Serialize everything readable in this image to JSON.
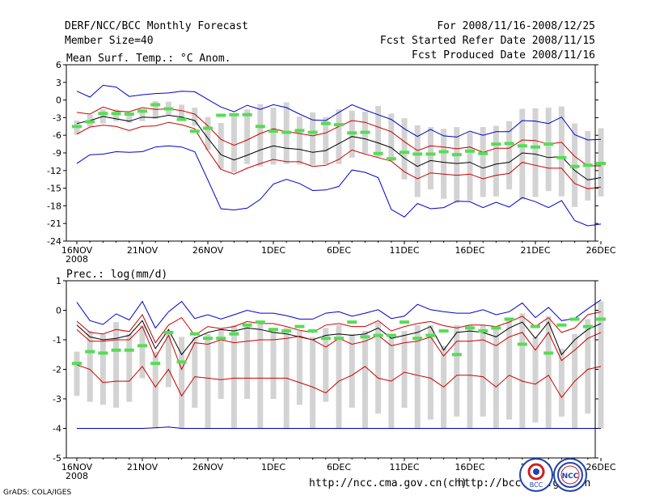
{
  "header": {
    "title": "DERF/NCC/BCC Monthly Forecast",
    "member_size": "Member Size=40",
    "period": "For 2008/11/16-2008/12/25",
    "started": "Fcst Started Refer Date 2008/11/15",
    "produced": "Fcst Produced Date 2008/11/16"
  },
  "footer": {
    "url1": "http://ncc.cma.gov.cn(ch)",
    "url2": "http://bcc.cma.gov.cn",
    "grads": "GrADS: COLA/IGES",
    "logo1_label": "BCC",
    "logo2_label": "NCC"
  },
  "colors": {
    "grey_bar": "#d3d3d3",
    "green": "#55dd55",
    "red": "#cc0000",
    "blue": "#0000cc",
    "black": "#000000"
  },
  "chart_data": [
    {
      "type": "line",
      "title": "Mean Surf. Temp.: °C Anom.",
      "xlabel": "",
      "ylabel": "",
      "x_tick_labels": [
        "16NOV",
        "21NOV",
        "26NOV",
        "1DEC",
        "6DEC",
        "11DEC",
        "16DEC",
        "21DEC",
        "26DEC"
      ],
      "x_tick_days": [
        0,
        5,
        10,
        15,
        20,
        25,
        30,
        35,
        40
      ],
      "year_label": "2008",
      "ylim": [
        -24,
        6
      ],
      "y_ticks": [
        6,
        3,
        0,
        -3,
        -6,
        -9,
        -12,
        -15,
        -18,
        -21,
        -24
      ],
      "y_tick_labels": [
        "6",
        "3",
        "0",
        "-3",
        "-6",
        "-9",
        "-12",
        "-15",
        "-18",
        "-21",
        "-24"
      ],
      "series": [
        {
          "name": "member max",
          "color": "blue",
          "values": [
            1.5,
            0.5,
            2.5,
            2.2,
            0.6,
            0.9,
            1.1,
            1.2,
            1.5,
            1.4,
            0.1,
            -1.2,
            -2.0,
            -0.9,
            -1.6,
            -0.8,
            -1.3,
            -2.4,
            -3.4,
            -3.5,
            -2.1,
            -0.8,
            -1.7,
            -2.5,
            -3.3,
            -4.9,
            -6.2,
            -5.0,
            -6.1,
            -6.3,
            -5.3,
            -6.0,
            -5.4,
            -5.4,
            -3.5,
            -3.6,
            -4.0,
            -2.9,
            -5.9,
            -6.8,
            -6.7
          ]
        },
        {
          "name": "upper",
          "color": "red",
          "values": [
            -2.1,
            -2.4,
            -1.2,
            -1.9,
            -2.0,
            -1.3,
            -1.6,
            -1.5,
            -1.8,
            -2.4,
            -4.4,
            -6.7,
            -7.7,
            -6.8,
            -5.7,
            -4.9,
            -5.4,
            -5.7,
            -6.1,
            -5.6,
            -4.5,
            -3.5,
            -3.8,
            -4.6,
            -5.4,
            -7.1,
            -8.6,
            -7.8,
            -8.0,
            -8.3,
            -8.0,
            -8.9,
            -8.2,
            -8.2,
            -6.8,
            -6.9,
            -7.5,
            -7.2,
            -9.6,
            -11.2,
            -11.2
          ]
        },
        {
          "name": "mean",
          "color": "black",
          "values": [
            -4.0,
            -3.5,
            -2.8,
            -3.2,
            -3.6,
            -2.9,
            -3.0,
            -2.6,
            -2.9,
            -3.5,
            -6.5,
            -9.3,
            -10.2,
            -9.4,
            -8.5,
            -7.8,
            -8.2,
            -8.4,
            -8.9,
            -8.6,
            -7.4,
            -6.2,
            -6.6,
            -7.3,
            -8.1,
            -9.9,
            -11.3,
            -10.3,
            -10.6,
            -10.8,
            -10.6,
            -11.6,
            -10.9,
            -10.6,
            -9.0,
            -9.2,
            -9.8,
            -9.6,
            -12.0,
            -13.6,
            -13.2
          ]
        },
        {
          "name": "lower",
          "color": "red",
          "values": [
            -5.8,
            -4.6,
            -4.3,
            -4.5,
            -5.2,
            -4.5,
            -4.4,
            -3.8,
            -4.2,
            -4.9,
            -8.6,
            -11.8,
            -12.6,
            -11.6,
            -10.8,
            -10.1,
            -10.5,
            -10.5,
            -11.3,
            -11.1,
            -10.1,
            -8.5,
            -9.2,
            -9.8,
            -10.4,
            -12.2,
            -13.4,
            -12.4,
            -12.6,
            -12.8,
            -12.6,
            -13.4,
            -12.8,
            -12.5,
            -10.6,
            -11.1,
            -11.6,
            -11.6,
            -14.2,
            -15.1,
            -14.8
          ]
        },
        {
          "name": "member min",
          "color": "blue",
          "values": [
            -10.8,
            -9.3,
            -9.2,
            -8.8,
            -8.9,
            -8.8,
            -8.0,
            -7.8,
            -8.0,
            -8.8,
            -13.6,
            -18.5,
            -18.7,
            -18.4,
            -16.9,
            -14.3,
            -13.5,
            -14.2,
            -15.4,
            -15.3,
            -14.7,
            -11.9,
            -12.3,
            -13.2,
            -18.6,
            -19.9,
            -17.6,
            -18.5,
            -18.3,
            -17.2,
            -17.3,
            -18.3,
            -17.4,
            -18.2,
            -16.6,
            -17.3,
            -18.3,
            -17.1,
            -20.5,
            -21.4,
            -21.1
          ]
        }
      ],
      "box_upper": [
        -3.5,
        -2.5,
        -1.6,
        -1.6,
        -2.5,
        -1.5,
        -0.2,
        -0.3,
        -0.8,
        -1.3,
        -2.9,
        -3.9,
        -2.3,
        -1.6,
        -0.7,
        -1.3,
        -0.4,
        -2.8,
        -2.1,
        -2.9,
        -1.6,
        -1.8,
        -2.0,
        -1.0,
        -2.3,
        -3.1,
        -4.3,
        -4.6,
        -4.9,
        -4.6,
        -5.5,
        -4.6,
        -4.4,
        -3.6,
        -1.5,
        -1.4,
        -1.3,
        -1.1,
        -4.0,
        -5.3,
        -4.8
      ],
      "box_lower": [
        -5.9,
        -4.5,
        -4.0,
        -3.6,
        -3.9,
        -3.6,
        -3.2,
        -2.5,
        -3.5,
        -4.4,
        -8.5,
        -11.7,
        -12.3,
        -10.9,
        -11.3,
        -11.0,
        -10.9,
        -11.0,
        -11.1,
        -10.9,
        -10.9,
        -9.8,
        -9.1,
        -9.7,
        -10.4,
        -13.5,
        -16.5,
        -15.2,
        -16.8,
        -17.5,
        -17.1,
        -16.5,
        -16.4,
        -15.2,
        -16.9,
        -16.5,
        -15.5,
        -16.4,
        -18.2,
        -17.1,
        -16.4
      ],
      "green_marks": [
        -4.5,
        -3.7,
        -2.3,
        -2.3,
        -2.4,
        -1.9,
        -0.8,
        -1.5,
        -3.3,
        -5.3,
        -4.8,
        -2.6,
        -2.5,
        -2.5,
        -4.5,
        -5.3,
        -5.5,
        -5.2,
        -5.5,
        -4.0,
        -4.2,
        -5.6,
        -5.5,
        -9.1,
        -10.0,
        -8.9,
        -9.2,
        -9.2,
        -8.8,
        -9.3,
        -8.7,
        -9.1,
        -7.5,
        -7.4,
        -7.8,
        -8.0,
        -7.5,
        -9.8,
        -11.3,
        -11.1,
        -10.8
      ]
    },
    {
      "type": "line",
      "title": "Prec.: log(mm/d)",
      "xlabel": "",
      "ylabel": "",
      "x_tick_labels": [
        "16NOV",
        "21NOV",
        "26NOV",
        "1DEC",
        "6DEC",
        "11DEC",
        "16DEC",
        "21DEC",
        "26DEC"
      ],
      "x_tick_days": [
        0,
        5,
        10,
        15,
        20,
        25,
        30,
        35,
        40
      ],
      "year_label": "2008",
      "ylim": [
        -5,
        1
      ],
      "y_ticks": [
        1,
        0,
        -1,
        -2,
        -3,
        -4,
        -5
      ],
      "y_tick_labels": [
        "1",
        "0",
        "-1",
        "-2",
        "-3",
        "-4",
        "-5"
      ],
      "series": [
        {
          "name": "member max",
          "color": "blue",
          "values": [
            0.27,
            -0.35,
            -0.48,
            -0.12,
            -0.33,
            0.3,
            -0.6,
            -0.05,
            0.3,
            -0.28,
            -0.15,
            -0.3,
            -0.15,
            0.0,
            -0.1,
            -0.1,
            -0.18,
            -0.3,
            -0.3,
            -0.1,
            -0.05,
            -0.2,
            -0.1,
            0.02,
            -0.28,
            -0.2,
            0.2,
            0.02,
            -0.05,
            -0.1,
            -0.1,
            0.02,
            -0.15,
            -0.05,
            0.25,
            -0.25,
            0.1,
            -0.35,
            -0.28,
            0.05,
            0.35
          ]
        },
        {
          "name": "upper",
          "color": "red",
          "values": [
            -0.37,
            -0.75,
            -0.8,
            -0.65,
            -0.72,
            -0.15,
            -1.1,
            -0.5,
            -0.25,
            -0.85,
            -0.55,
            -0.62,
            -0.55,
            -0.38,
            -0.45,
            -0.45,
            -0.55,
            -0.68,
            -0.75,
            -0.5,
            -0.45,
            -0.55,
            -0.55,
            -0.35,
            -0.7,
            -0.55,
            -0.45,
            -0.38,
            -0.52,
            -0.6,
            -0.5,
            -0.5,
            -0.55,
            -0.4,
            -0.2,
            -0.55,
            -0.25,
            -0.75,
            -0.6,
            -0.15,
            -0.05
          ]
        },
        {
          "name": "mean",
          "color": "black",
          "values": [
            -0.5,
            -0.9,
            -1.0,
            -0.95,
            -0.85,
            -0.35,
            -1.3,
            -0.65,
            -1.5,
            -0.95,
            -0.75,
            -0.65,
            -0.7,
            -0.6,
            -0.65,
            -0.75,
            -0.8,
            -0.9,
            -1.0,
            -0.85,
            -0.8,
            -0.85,
            -0.8,
            -0.6,
            -0.95,
            -0.85,
            -0.75,
            -0.55,
            -1.35,
            -0.75,
            -0.7,
            -0.75,
            -0.9,
            -0.6,
            -0.4,
            -0.95,
            -0.4,
            -1.5,
            -1.0,
            -0.65,
            -0.45
          ]
        },
        {
          "name": "lower",
          "color": "red",
          "values": [
            -0.65,
            -1.05,
            -1.05,
            -1.0,
            -1.0,
            -0.55,
            -1.6,
            -0.85,
            -2.0,
            -1.1,
            -1.15,
            -1.0,
            -1.1,
            -1.05,
            -1.0,
            -1.0,
            -0.95,
            -0.88,
            -1.0,
            -1.25,
            -0.95,
            -1.15,
            -1.05,
            -0.85,
            -1.2,
            -1.1,
            -1.05,
            -0.9,
            -1.55,
            -1.05,
            -1.05,
            -1.0,
            -1.2,
            -0.9,
            -0.75,
            -1.35,
            -0.75,
            -1.7,
            -1.35,
            -0.95,
            -0.75
          ]
        },
        {
          "name": "member min",
          "color": "blue",
          "values": [
            -4.0,
            -4.0,
            -4.0,
            -4.0,
            -4.0,
            -4.0,
            -3.98,
            -3.95,
            -4.0,
            -4.0,
            -4.0,
            -4.0,
            -4.0,
            -4.0,
            -4.0,
            -4.0,
            -4.0,
            -4.0,
            -4.0,
            -4.0,
            -4.0,
            -4.0,
            -4.0,
            -4.0,
            -4.0,
            -4.0,
            -4.0,
            -4.0,
            -4.0,
            -4.0,
            -4.0,
            -4.0,
            -4.0,
            -4.0,
            -4.0,
            -4.0,
            -4.0,
            -4.0,
            -4.0,
            -4.0,
            -4.0
          ]
        },
        {
          "name": "lower red (lowest)",
          "color": "red",
          "values": [
            -1.85,
            -2.0,
            -2.45,
            -2.4,
            -2.4,
            -1.9,
            -2.6,
            -2.0,
            -2.9,
            -2.25,
            -2.3,
            -2.35,
            -2.3,
            -2.3,
            -2.3,
            -2.3,
            -2.3,
            -2.45,
            -2.6,
            -2.8,
            -2.4,
            -2.2,
            -1.9,
            -2.3,
            -2.4,
            -2.1,
            -2.2,
            -2.3,
            -2.6,
            -2.2,
            -2.2,
            -2.25,
            -2.6,
            -2.2,
            -2.4,
            -2.5,
            -2.2,
            -2.95,
            -2.4,
            -2.0,
            -1.9
          ]
        }
      ],
      "box_upper": [
        -1.4,
        -0.7,
        -0.8,
        -0.4,
        -0.8,
        -0.5,
        -1.4,
        -0.8,
        -0.9,
        -0.9,
        -0.8,
        -0.6,
        -0.5,
        -0.5,
        -0.4,
        -0.7,
        -0.6,
        -0.7,
        -0.9,
        -0.6,
        -0.5,
        -0.8,
        -0.7,
        -0.4,
        -0.9,
        -0.7,
        -0.5,
        -0.5,
        -1.2,
        -0.5,
        -0.5,
        -0.5,
        -0.6,
        -0.3,
        -0.1,
        -0.9,
        -0.2,
        -1.3,
        -0.8,
        -0.3,
        0.3
      ],
      "box_lower": [
        -2.9,
        -3.1,
        -3.2,
        -3.3,
        -3.1,
        -2.3,
        -4.0,
        -2.6,
        -4.0,
        -3.3,
        -4.0,
        -3.0,
        -4.0,
        -3.0,
        -4.0,
        -3.0,
        -4.0,
        -3.2,
        -4.0,
        -3.1,
        -4.0,
        -3.3,
        -4.0,
        -3.5,
        -4.0,
        -3.3,
        -4.0,
        -3.7,
        -4.0,
        -3.6,
        -4.0,
        -3.6,
        -4.0,
        -3.7,
        -4.0,
        -3.8,
        -4.0,
        -3.6,
        -4.0,
        -3.5,
        -4.0
      ],
      "green_marks": [
        -1.8,
        -1.4,
        -1.45,
        -1.35,
        -1.35,
        -1.2,
        -1.8,
        -0.75,
        -1.75,
        -0.8,
        -0.95,
        -0.95,
        -0.8,
        -0.5,
        -0.4,
        -0.65,
        -0.7,
        -0.55,
        -0.7,
        -0.95,
        -0.95,
        -0.4,
        -0.9,
        -0.85,
        -0.85,
        -0.4,
        -0.95,
        -0.85,
        -0.7,
        -1.5,
        -0.6,
        -0.7,
        -0.6,
        -0.3,
        -1.15,
        -0.55,
        -1.45,
        -0.5,
        -0.3,
        -0.55,
        -0.3
      ]
    }
  ]
}
